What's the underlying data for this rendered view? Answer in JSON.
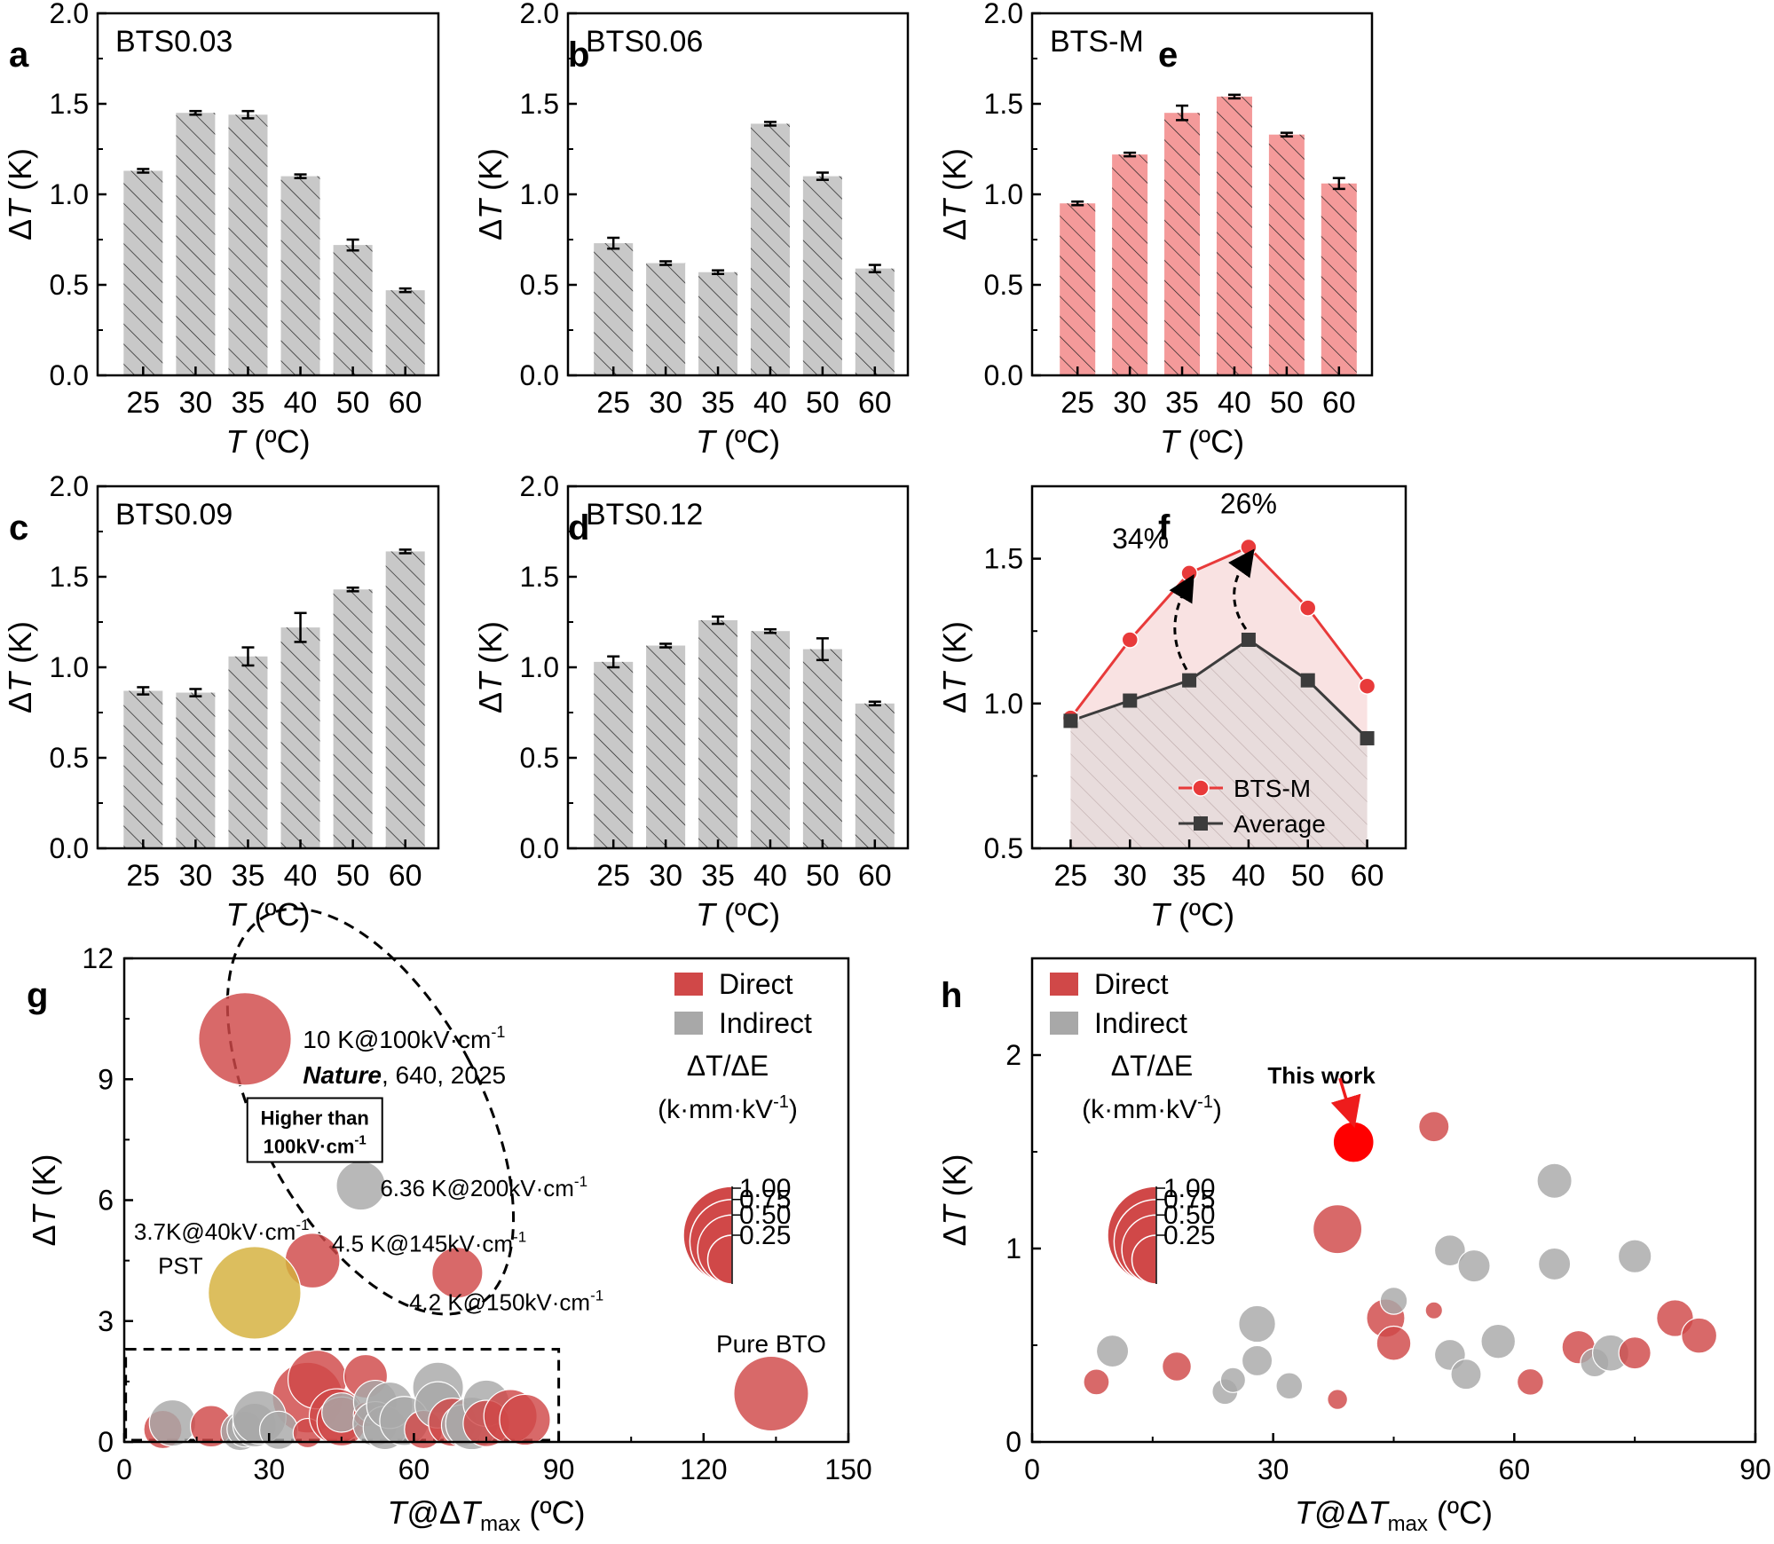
{
  "colors": {
    "bar_gray": "#c8c8c8",
    "bar_pink": "#f49a9a",
    "direct": "#d04848",
    "indirect": "#a8a8a8",
    "gold": "#d4b03a",
    "this_work": "#ff0000",
    "pink_text": "#f29a9a",
    "gray_text": "#a8a8a8",
    "gold_text": "#c79c14",
    "red_text": "#ee1c1c",
    "line_red": "#e83a3a",
    "line_gray": "#3c3c3c",
    "area_red": "#f7d8d8",
    "area_gray": "#e8dcdc"
  },
  "chart_data": [
    {
      "panel": "a",
      "type": "bar",
      "title": "BTS0.03",
      "categories": [
        "25",
        "30",
        "35",
        "40",
        "50",
        "60"
      ],
      "values": [
        1.13,
        1.45,
        1.44,
        1.1,
        0.72,
        0.47
      ],
      "errors": [
        0.01,
        0.01,
        0.02,
        0.01,
        0.03,
        0.01
      ],
      "ylim": [
        0,
        2.0
      ],
      "yticks": [
        "0.0",
        "0.5",
        "1.0",
        "1.5",
        "2.0"
      ],
      "xlabel_italic": "T",
      "xlabel_rest": " (ºC)",
      "ylabel_prefix": "Δ",
      "ylabel_italic": "T",
      "ylabel_rest": " (K)"
    },
    {
      "panel": "b",
      "type": "bar",
      "title": "BTS0.06",
      "categories": [
        "25",
        "30",
        "35",
        "40",
        "50",
        "60"
      ],
      "values": [
        0.73,
        0.62,
        0.57,
        1.39,
        1.1,
        0.59
      ],
      "errors": [
        0.03,
        0.01,
        0.01,
        0.01,
        0.02,
        0.02
      ],
      "ylim": [
        0,
        2.0
      ],
      "yticks": [
        "0.0",
        "0.5",
        "1.0",
        "1.5",
        "2.0"
      ],
      "xlabel_italic": "T",
      "xlabel_rest": " (ºC)",
      "ylabel_prefix": "Δ",
      "ylabel_italic": "T",
      "ylabel_rest": " (K)"
    },
    {
      "panel": "e",
      "type": "bar",
      "title": "BTS-M",
      "categories": [
        "25",
        "30",
        "35",
        "40",
        "50",
        "60"
      ],
      "values": [
        0.95,
        1.22,
        1.45,
        1.54,
        1.33,
        1.06
      ],
      "errors": [
        0.01,
        0.01,
        0.04,
        0.01,
        0.01,
        0.03
      ],
      "ylim": [
        0,
        2.0
      ],
      "yticks": [
        "0.0",
        "0.5",
        "1.0",
        "1.5",
        "2.0"
      ],
      "xlabel_italic": "T",
      "xlabel_rest": " (ºC)",
      "ylabel_prefix": "Δ",
      "ylabel_italic": "T",
      "ylabel_rest": " (K)"
    },
    {
      "panel": "c",
      "type": "bar",
      "title": "BTS0.09",
      "categories": [
        "25",
        "30",
        "35",
        "40",
        "50",
        "60"
      ],
      "values": [
        0.87,
        0.86,
        1.06,
        1.22,
        1.43,
        1.64
      ],
      "errors": [
        0.02,
        0.02,
        0.05,
        0.08,
        0.01,
        0.01
      ],
      "ylim": [
        0,
        2.0
      ],
      "yticks": [
        "0.0",
        "0.5",
        "1.0",
        "1.5",
        "2.0"
      ],
      "xlabel_italic": "T",
      "xlabel_rest": " (ºC)",
      "ylabel_prefix": "Δ",
      "ylabel_italic": "T",
      "ylabel_rest": " (K)"
    },
    {
      "panel": "d",
      "type": "bar",
      "title": "BTS0.12",
      "categories": [
        "25",
        "30",
        "35",
        "40",
        "50",
        "60"
      ],
      "values": [
        1.03,
        1.12,
        1.26,
        1.2,
        1.1,
        0.8
      ],
      "errors": [
        0.03,
        0.01,
        0.02,
        0.01,
        0.06,
        0.01
      ],
      "ylim": [
        0,
        2.0
      ],
      "yticks": [
        "0.0",
        "0.5",
        "1.0",
        "1.5",
        "2.0"
      ],
      "xlabel_italic": "T",
      "xlabel_rest": " (ºC)",
      "ylabel_prefix": "Δ",
      "ylabel_italic": "T",
      "ylabel_rest": " (K)"
    },
    {
      "panel": "f",
      "type": "line",
      "categories": [
        "25",
        "30",
        "35",
        "40",
        "50",
        "60"
      ],
      "series": [
        {
          "name": "BTS-M",
          "values": [
            0.95,
            1.22,
            1.45,
            1.54,
            1.33,
            1.06
          ]
        },
        {
          "name": "Average",
          "values": [
            0.94,
            1.01,
            1.08,
            1.22,
            1.08,
            0.88
          ]
        }
      ],
      "annotations": [
        {
          "text": "34%",
          "category": "35"
        },
        {
          "text": "26%",
          "category": "40"
        }
      ],
      "ylim": [
        0.5,
        1.75
      ],
      "yticks": [
        "0.5",
        "1.0",
        "1.5"
      ],
      "ytick_values": [
        0.5,
        1.0,
        1.5
      ],
      "xlabel_italic": "T",
      "xlabel_rest": " (ºC)",
      "ylabel_prefix": "Δ",
      "ylabel_italic": "T",
      "ylabel_rest": " (K)"
    },
    {
      "panel": "g",
      "type": "scatter",
      "xlim": [
        0,
        150
      ],
      "ylim": [
        0,
        12
      ],
      "xticks": [
        0,
        30,
        60,
        90,
        120,
        150
      ],
      "yticks": [
        0,
        3,
        6,
        9,
        12
      ],
      "xlabel": {
        "a": "T",
        "b": "@Δ",
        "c": "T",
        "sub": "max",
        "d": " (ºC)"
      },
      "ylabel_prefix": "Δ",
      "ylabel_italic": "T",
      "ylabel_rest": " (K)",
      "legend": {
        "direct": "Direct",
        "indirect": "Indirect",
        "size_title": "ΔT/ΔE",
        "size_unit": "(k·mm·kV",
        "size_unit_sup": "-1",
        "size_unit_end": ")",
        "size_values": [
          "1.00",
          "0.75",
          "0.50",
          "0.25"
        ]
      },
      "annotations": {
        "nature_1": "10 K@100kV·cm",
        "nature_1_sup": "-1",
        "nature_2_bold": "Nature",
        "nature_2_rest": ", 640, 2025",
        "box_line1": "Higher than",
        "box_line2": "100kV·cm",
        "box_line2_sup": "-1",
        "gray_label": "6.36 K@200kV·cm",
        "gray_label_sup": "-1",
        "pst_line1": "3.7K@40kV·cm",
        "pst_line1_sup": "-1",
        "pst_line2": "PST",
        "label_145": "4.5 K@145kV·cm",
        "label_145_sup": "-1",
        "label_150": "4.2 K@150kV·cm",
        "label_150_sup": "-1",
        "pure_bto": "Pure BTO"
      },
      "points": [
        {
          "x": 25,
          "y": 10.0,
          "r": 1.0,
          "kind": "direct"
        },
        {
          "x": 49,
          "y": 6.36,
          "r": 0.28,
          "kind": "indirect"
        },
        {
          "x": 39,
          "y": 4.5,
          "r": 0.35,
          "kind": "direct"
        },
        {
          "x": 69,
          "y": 4.2,
          "r": 0.3,
          "kind": "direct"
        },
        {
          "x": 27,
          "y": 3.7,
          "r": 1.0,
          "kind": "gold"
        },
        {
          "x": 134,
          "y": 1.2,
          "r": 0.65,
          "kind": "direct"
        },
        {
          "x": 38,
          "y": 1.1,
          "r": 0.58,
          "kind": "direct"
        },
        {
          "x": 40,
          "y": 1.55,
          "r": 0.4,
          "kind": "direct"
        },
        {
          "x": 50,
          "y": 1.63,
          "r": 0.22,
          "kind": "direct"
        },
        {
          "x": 65,
          "y": 1.35,
          "r": 0.3,
          "kind": "indirect"
        },
        {
          "x": 8,
          "y": 0.31,
          "r": 0.17,
          "kind": "direct"
        },
        {
          "x": 10,
          "y": 0.47,
          "r": 0.25,
          "kind": "indirect"
        },
        {
          "x": 18,
          "y": 0.39,
          "r": 0.2,
          "kind": "direct"
        },
        {
          "x": 24,
          "y": 0.26,
          "r": 0.17,
          "kind": "indirect"
        },
        {
          "x": 25,
          "y": 0.32,
          "r": 0.15,
          "kind": "indirect"
        },
        {
          "x": 27,
          "y": 0.42,
          "r": 0.22,
          "kind": "indirect"
        },
        {
          "x": 28,
          "y": 0.61,
          "r": 0.33,
          "kind": "indirect"
        },
        {
          "x": 32,
          "y": 0.29,
          "r": 0.17,
          "kind": "indirect"
        },
        {
          "x": 38,
          "y": 0.22,
          "r": 0.1,
          "kind": "direct"
        },
        {
          "x": 44,
          "y": 0.64,
          "r": 0.35,
          "kind": "direct"
        },
        {
          "x": 45,
          "y": 0.51,
          "r": 0.28,
          "kind": "direct"
        },
        {
          "x": 45,
          "y": 0.73,
          "r": 0.18,
          "kind": "indirect"
        },
        {
          "x": 50,
          "y": 0.68,
          "r": 0.07,
          "kind": "direct"
        },
        {
          "x": 52,
          "y": 0.99,
          "r": 0.22,
          "kind": "indirect"
        },
        {
          "x": 52,
          "y": 0.45,
          "r": 0.23,
          "kind": "indirect"
        },
        {
          "x": 54,
          "y": 0.35,
          "r": 0.22,
          "kind": "indirect"
        },
        {
          "x": 55,
          "y": 0.91,
          "r": 0.25,
          "kind": "indirect"
        },
        {
          "x": 58,
          "y": 0.52,
          "r": 0.28,
          "kind": "indirect"
        },
        {
          "x": 62,
          "y": 0.31,
          "r": 0.17,
          "kind": "direct"
        },
        {
          "x": 65,
          "y": 0.92,
          "r": 0.25,
          "kind": "indirect"
        },
        {
          "x": 68,
          "y": 0.49,
          "r": 0.27,
          "kind": "direct"
        },
        {
          "x": 70,
          "y": 0.41,
          "r": 0.2,
          "kind": "indirect"
        },
        {
          "x": 72,
          "y": 0.46,
          "r": 0.32,
          "kind": "indirect"
        },
        {
          "x": 75,
          "y": 0.96,
          "r": 0.25,
          "kind": "indirect"
        },
        {
          "x": 75,
          "y": 0.46,
          "r": 0.25,
          "kind": "direct"
        },
        {
          "x": 80,
          "y": 0.64,
          "r": 0.33,
          "kind": "direct"
        },
        {
          "x": 83,
          "y": 0.55,
          "r": 0.3,
          "kind": "direct"
        }
      ]
    },
    {
      "panel": "h",
      "type": "scatter",
      "xlim": [
        0,
        90
      ],
      "ylim": [
        0,
        2.5
      ],
      "xticks": [
        0,
        30,
        60,
        90
      ],
      "yticks": [
        0,
        1,
        2
      ],
      "xlabel": {
        "a": "T",
        "b": "@Δ",
        "c": "T",
        "sub": "max",
        "d": " (ºC)"
      },
      "ylabel_prefix": "Δ",
      "ylabel_italic": "T",
      "ylabel_rest": " (K)",
      "legend": {
        "direct": "Direct",
        "indirect": "Indirect",
        "size_title": "ΔT/ΔE",
        "size_unit": "(k·mm·kV",
        "size_unit_sup": "-1",
        "size_unit_end": ")",
        "size_values": [
          "1.00",
          "0.75",
          "0.50",
          "0.25"
        ]
      },
      "annotations": {
        "this_work": "This work"
      },
      "points": [
        {
          "x": 40,
          "y": 1.55,
          "r": 0.45,
          "kind": "this"
        },
        {
          "x": 50,
          "y": 1.63,
          "r": 0.25,
          "kind": "direct"
        },
        {
          "x": 38,
          "y": 1.1,
          "r": 0.65,
          "kind": "direct"
        },
        {
          "x": 65,
          "y": 1.35,
          "r": 0.33,
          "kind": "indirect"
        },
        {
          "x": 52,
          "y": 0.99,
          "r": 0.26,
          "kind": "indirect"
        },
        {
          "x": 55,
          "y": 0.91,
          "r": 0.28,
          "kind": "indirect"
        },
        {
          "x": 65,
          "y": 0.92,
          "r": 0.28,
          "kind": "indirect"
        },
        {
          "x": 75,
          "y": 0.96,
          "r": 0.3,
          "kind": "indirect"
        },
        {
          "x": 8,
          "y": 0.31,
          "r": 0.18,
          "kind": "direct"
        },
        {
          "x": 10,
          "y": 0.47,
          "r": 0.28,
          "kind": "indirect"
        },
        {
          "x": 18,
          "y": 0.39,
          "r": 0.23,
          "kind": "direct"
        },
        {
          "x": 24,
          "y": 0.26,
          "r": 0.18,
          "kind": "indirect"
        },
        {
          "x": 25,
          "y": 0.32,
          "r": 0.17,
          "kind": "indirect"
        },
        {
          "x": 28,
          "y": 0.42,
          "r": 0.25,
          "kind": "indirect"
        },
        {
          "x": 28,
          "y": 0.61,
          "r": 0.37,
          "kind": "indirect"
        },
        {
          "x": 32,
          "y": 0.29,
          "r": 0.19,
          "kind": "indirect"
        },
        {
          "x": 38,
          "y": 0.22,
          "r": 0.11,
          "kind": "direct"
        },
        {
          "x": 44,
          "y": 0.64,
          "r": 0.4,
          "kind": "direct"
        },
        {
          "x": 45,
          "y": 0.51,
          "r": 0.32,
          "kind": "direct"
        },
        {
          "x": 45,
          "y": 0.73,
          "r": 0.2,
          "kind": "indirect"
        },
        {
          "x": 50,
          "y": 0.68,
          "r": 0.08,
          "kind": "direct"
        },
        {
          "x": 52,
          "y": 0.45,
          "r": 0.26,
          "kind": "indirect"
        },
        {
          "x": 54,
          "y": 0.35,
          "r": 0.25,
          "kind": "indirect"
        },
        {
          "x": 58,
          "y": 0.52,
          "r": 0.32,
          "kind": "indirect"
        },
        {
          "x": 62,
          "y": 0.31,
          "r": 0.19,
          "kind": "direct"
        },
        {
          "x": 68,
          "y": 0.49,
          "r": 0.3,
          "kind": "direct"
        },
        {
          "x": 70,
          "y": 0.41,
          "r": 0.22,
          "kind": "indirect"
        },
        {
          "x": 72,
          "y": 0.46,
          "r": 0.36,
          "kind": "indirect"
        },
        {
          "x": 75,
          "y": 0.46,
          "r": 0.28,
          "kind": "direct"
        },
        {
          "x": 80,
          "y": 0.64,
          "r": 0.37,
          "kind": "direct"
        },
        {
          "x": 83,
          "y": 0.55,
          "r": 0.34,
          "kind": "direct"
        }
      ]
    }
  ]
}
